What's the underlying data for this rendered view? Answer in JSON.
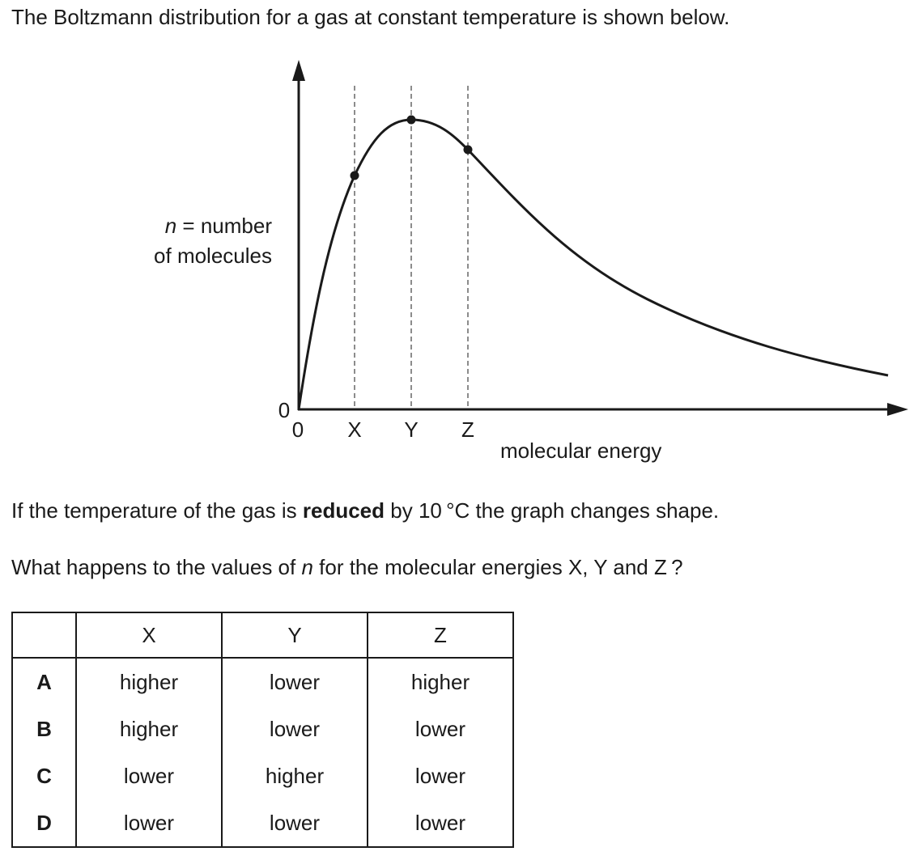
{
  "intro": "The Boltzmann distribution for a gas at constant temperature is shown below.",
  "graph": {
    "ylabel_var": "n",
    "ylabel_rest": " = number",
    "ylabel_line2": "of molecules",
    "xlabel": "molecular energy",
    "origin_y": "0",
    "ticks": [
      "0",
      "X",
      "Y",
      "Z"
    ]
  },
  "question1": {
    "before": "If the temperature of the gas is ",
    "bold": "reduced",
    "after": " by 10 °C the graph changes shape."
  },
  "question2": {
    "before": "What happens to the values of ",
    "var": "n",
    "after": " for the molecular energies X, Y and Z ?"
  },
  "table": {
    "headers": [
      "",
      "X",
      "Y",
      "Z"
    ],
    "rows": [
      {
        "letter": "A",
        "x": "higher",
        "y": "lower",
        "z": "higher"
      },
      {
        "letter": "B",
        "x": "higher",
        "y": "lower",
        "z": "lower"
      },
      {
        "letter": "C",
        "x": "lower",
        "y": "higher",
        "z": "lower"
      },
      {
        "letter": "D",
        "x": "lower",
        "y": "lower",
        "z": "lower"
      }
    ]
  }
}
